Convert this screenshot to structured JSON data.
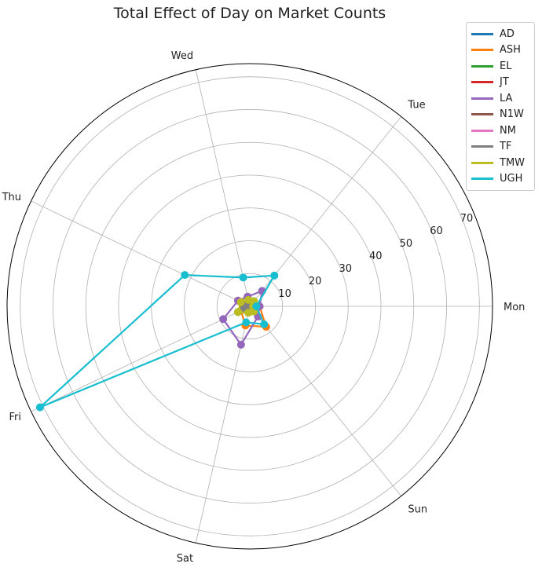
{
  "chart_data": {
    "type": "radar",
    "title": "Total Effect of Day on Market Counts",
    "categories": [
      "Mon",
      "Tue",
      "Wed",
      "Thu",
      "Fri",
      "Sat",
      "Sun"
    ],
    "radial_ticks": [
      10,
      20,
      30,
      40,
      50,
      60,
      70
    ],
    "rlim": [
      0,
      74
    ],
    "grid": true,
    "legend_placement": "top-right",
    "series": [
      {
        "name": "AD",
        "color": "#1f77b4",
        "values": [
          2,
          1,
          1,
          1,
          3,
          2,
          2
        ]
      },
      {
        "name": "ASH",
        "color": "#ff7f0e",
        "values": [
          3,
          2,
          3,
          4,
          3,
          6,
          8
        ]
      },
      {
        "name": "EL",
        "color": "#2ca02c",
        "values": [
          2,
          2,
          1,
          2,
          4,
          2,
          2
        ]
      },
      {
        "name": "JT",
        "color": "#d62728",
        "values": [
          1,
          1,
          1,
          2,
          2,
          1,
          1
        ]
      },
      {
        "name": "LA",
        "color": "#9467bd",
        "values": [
          3,
          6,
          3,
          4,
          9,
          12,
          4
        ]
      },
      {
        "name": "N1W",
        "color": "#8c564b",
        "values": [
          1,
          1,
          1,
          1,
          1,
          1,
          1
        ]
      },
      {
        "name": "NM",
        "color": "#e377c2",
        "values": [
          1,
          1,
          1,
          1,
          2,
          1,
          1
        ]
      },
      {
        "name": "TF",
        "color": "#7f7f7f",
        "values": [
          2,
          1,
          1,
          2,
          2,
          1,
          1
        ]
      },
      {
        "name": "TMW",
        "color": "#bcbd22",
        "values": [
          1,
          2,
          2,
          3,
          4,
          2,
          2
        ]
      },
      {
        "name": "UGH",
        "color": "#17becf",
        "values": [
          2,
          12,
          9,
          22,
          71,
          5,
          7
        ]
      }
    ]
  }
}
